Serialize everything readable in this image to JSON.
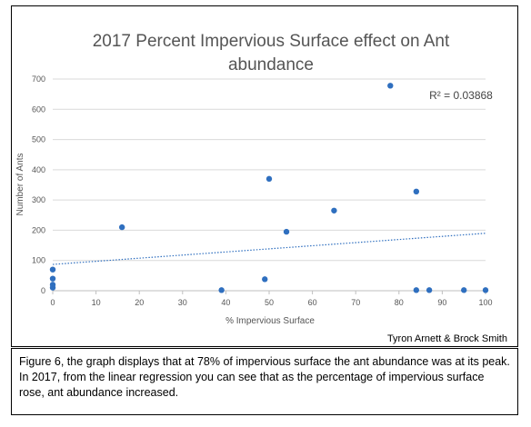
{
  "chart_data": {
    "type": "scatter",
    "title": "2017 Percent Impervious Surface effect on Ant abundance",
    "title_lines": [
      "2017 Percent Impervious Surface effect on Ant",
      "abundance"
    ],
    "xlabel": "% Impervious Surface",
    "ylabel": "Number of Ants",
    "xlim": [
      0,
      100
    ],
    "ylim": [
      0,
      700
    ],
    "x_ticks": [
      0,
      10,
      20,
      30,
      40,
      50,
      60,
      70,
      80,
      90,
      100
    ],
    "y_ticks": [
      0,
      100,
      200,
      300,
      400,
      500,
      600,
      700
    ],
    "grid": true,
    "legend": "none",
    "points": [
      {
        "x": 0,
        "y": 70
      },
      {
        "x": 0,
        "y": 40
      },
      {
        "x": 0,
        "y": 20
      },
      {
        "x": 0,
        "y": 10
      },
      {
        "x": 16,
        "y": 210
      },
      {
        "x": 39,
        "y": 2
      },
      {
        "x": 49,
        "y": 38
      },
      {
        "x": 50,
        "y": 370
      },
      {
        "x": 54,
        "y": 195
      },
      {
        "x": 65,
        "y": 265
      },
      {
        "x": 78,
        "y": 678
      },
      {
        "x": 84,
        "y": 328
      },
      {
        "x": 84,
        "y": 2
      },
      {
        "x": 87,
        "y": 2
      },
      {
        "x": 95,
        "y": 2
      },
      {
        "x": 100,
        "y": 2
      }
    ],
    "trendline": {
      "type": "linear",
      "x": [
        0,
        100
      ],
      "y": [
        87,
        190
      ],
      "r_squared_label": "R² = 0.03868"
    },
    "point_color": "#2f6fbf",
    "trendline_color": "#2f6fbf"
  },
  "credit": "Tyron Arnett & Brock Smith",
  "caption": "Figure 6, the graph displays that at 78% of impervious surface the ant abundance was at its peak. In 2017, from the linear regression you can see that as the percentage of impervious surface rose, ant abundance increased."
}
